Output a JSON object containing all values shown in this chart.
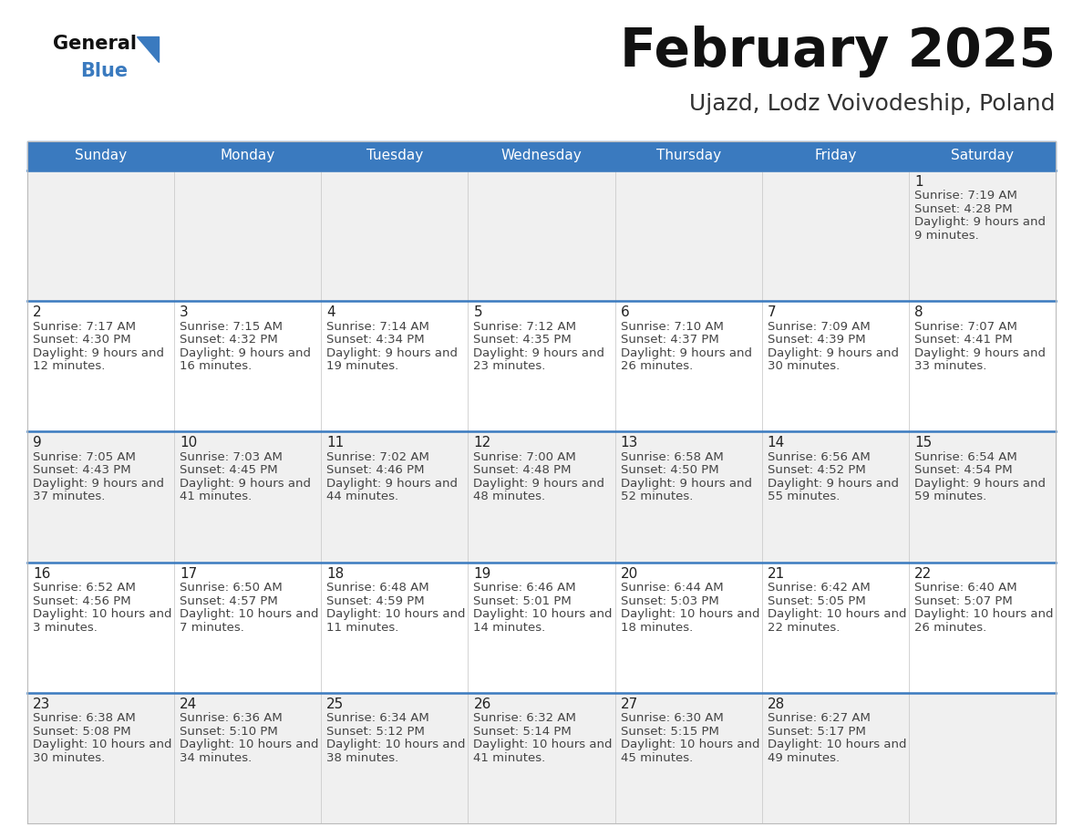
{
  "title": "February 2025",
  "subtitle": "Ujazd, Lodz Voivodeship, Poland",
  "days_of_week": [
    "Sunday",
    "Monday",
    "Tuesday",
    "Wednesday",
    "Thursday",
    "Friday",
    "Saturday"
  ],
  "header_bg": "#3a7abf",
  "header_text": "#ffffff",
  "row_bg_even": "#f0f0f0",
  "row_bg_odd": "#ffffff",
  "separator_color": "#3a7abf",
  "day_number_color": "#222222",
  "day_text_color": "#444444",
  "calendar_data": [
    {
      "day": 1,
      "col": 6,
      "row": 0,
      "sunrise": "7:19 AM",
      "sunset": "4:28 PM",
      "daylight": "9 hours and 9 minutes"
    },
    {
      "day": 2,
      "col": 0,
      "row": 1,
      "sunrise": "7:17 AM",
      "sunset": "4:30 PM",
      "daylight": "9 hours and 12 minutes"
    },
    {
      "day": 3,
      "col": 1,
      "row": 1,
      "sunrise": "7:15 AM",
      "sunset": "4:32 PM",
      "daylight": "9 hours and 16 minutes"
    },
    {
      "day": 4,
      "col": 2,
      "row": 1,
      "sunrise": "7:14 AM",
      "sunset": "4:34 PM",
      "daylight": "9 hours and 19 minutes"
    },
    {
      "day": 5,
      "col": 3,
      "row": 1,
      "sunrise": "7:12 AM",
      "sunset": "4:35 PM",
      "daylight": "9 hours and 23 minutes"
    },
    {
      "day": 6,
      "col": 4,
      "row": 1,
      "sunrise": "7:10 AM",
      "sunset": "4:37 PM",
      "daylight": "9 hours and 26 minutes"
    },
    {
      "day": 7,
      "col": 5,
      "row": 1,
      "sunrise": "7:09 AM",
      "sunset": "4:39 PM",
      "daylight": "9 hours and 30 minutes"
    },
    {
      "day": 8,
      "col": 6,
      "row": 1,
      "sunrise": "7:07 AM",
      "sunset": "4:41 PM",
      "daylight": "9 hours and 33 minutes"
    },
    {
      "day": 9,
      "col": 0,
      "row": 2,
      "sunrise": "7:05 AM",
      "sunset": "4:43 PM",
      "daylight": "9 hours and 37 minutes"
    },
    {
      "day": 10,
      "col": 1,
      "row": 2,
      "sunrise": "7:03 AM",
      "sunset": "4:45 PM",
      "daylight": "9 hours and 41 minutes"
    },
    {
      "day": 11,
      "col": 2,
      "row": 2,
      "sunrise": "7:02 AM",
      "sunset": "4:46 PM",
      "daylight": "9 hours and 44 minutes"
    },
    {
      "day": 12,
      "col": 3,
      "row": 2,
      "sunrise": "7:00 AM",
      "sunset": "4:48 PM",
      "daylight": "9 hours and 48 minutes"
    },
    {
      "day": 13,
      "col": 4,
      "row": 2,
      "sunrise": "6:58 AM",
      "sunset": "4:50 PM",
      "daylight": "9 hours and 52 minutes"
    },
    {
      "day": 14,
      "col": 5,
      "row": 2,
      "sunrise": "6:56 AM",
      "sunset": "4:52 PM",
      "daylight": "9 hours and 55 minutes"
    },
    {
      "day": 15,
      "col": 6,
      "row": 2,
      "sunrise": "6:54 AM",
      "sunset": "4:54 PM",
      "daylight": "9 hours and 59 minutes"
    },
    {
      "day": 16,
      "col": 0,
      "row": 3,
      "sunrise": "6:52 AM",
      "sunset": "4:56 PM",
      "daylight": "10 hours and 3 minutes"
    },
    {
      "day": 17,
      "col": 1,
      "row": 3,
      "sunrise": "6:50 AM",
      "sunset": "4:57 PM",
      "daylight": "10 hours and 7 minutes"
    },
    {
      "day": 18,
      "col": 2,
      "row": 3,
      "sunrise": "6:48 AM",
      "sunset": "4:59 PM",
      "daylight": "10 hours and 11 minutes"
    },
    {
      "day": 19,
      "col": 3,
      "row": 3,
      "sunrise": "6:46 AM",
      "sunset": "5:01 PM",
      "daylight": "10 hours and 14 minutes"
    },
    {
      "day": 20,
      "col": 4,
      "row": 3,
      "sunrise": "6:44 AM",
      "sunset": "5:03 PM",
      "daylight": "10 hours and 18 minutes"
    },
    {
      "day": 21,
      "col": 5,
      "row": 3,
      "sunrise": "6:42 AM",
      "sunset": "5:05 PM",
      "daylight": "10 hours and 22 minutes"
    },
    {
      "day": 22,
      "col": 6,
      "row": 3,
      "sunrise": "6:40 AM",
      "sunset": "5:07 PM",
      "daylight": "10 hours and 26 minutes"
    },
    {
      "day": 23,
      "col": 0,
      "row": 4,
      "sunrise": "6:38 AM",
      "sunset": "5:08 PM",
      "daylight": "10 hours and 30 minutes"
    },
    {
      "day": 24,
      "col": 1,
      "row": 4,
      "sunrise": "6:36 AM",
      "sunset": "5:10 PM",
      "daylight": "10 hours and 34 minutes"
    },
    {
      "day": 25,
      "col": 2,
      "row": 4,
      "sunrise": "6:34 AM",
      "sunset": "5:12 PM",
      "daylight": "10 hours and 38 minutes"
    },
    {
      "day": 26,
      "col": 3,
      "row": 4,
      "sunrise": "6:32 AM",
      "sunset": "5:14 PM",
      "daylight": "10 hours and 41 minutes"
    },
    {
      "day": 27,
      "col": 4,
      "row": 4,
      "sunrise": "6:30 AM",
      "sunset": "5:15 PM",
      "daylight": "10 hours and 45 minutes"
    },
    {
      "day": 28,
      "col": 5,
      "row": 4,
      "sunrise": "6:27 AM",
      "sunset": "5:17 PM",
      "daylight": "10 hours and 49 minutes"
    }
  ],
  "num_rows": 5,
  "logo_triangle_color": "#3a7abf",
  "fig_width": 11.88,
  "fig_height": 9.18,
  "dpi": 100
}
